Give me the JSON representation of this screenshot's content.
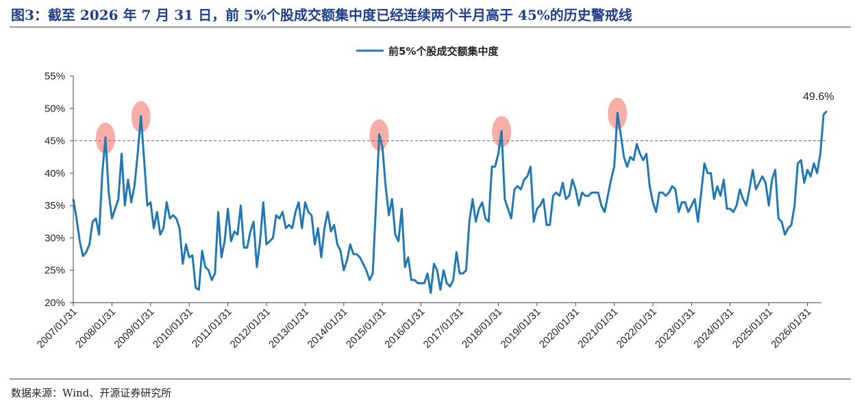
{
  "figure": {
    "title": "图3：截至 2026 年 7 月 31 日，前 5%个股成交额集中度已经连续两个半月高于 45%的历史警戒线",
    "source": "数据来源：Wind、开源证券研究所"
  },
  "colors": {
    "line": "#1f77b4",
    "threshold": "#e8473f",
    "highlight": "#f4a097",
    "title": "#1f3f8c",
    "axis": "#404040"
  },
  "chart_data": {
    "type": "line",
    "title": "",
    "xlabel": "",
    "ylabel": "",
    "legend": {
      "position": "top-center",
      "entries": [
        "前5%个股成交额集中度"
      ]
    },
    "x_start": "2007/01",
    "x_end": "2026/07",
    "x_ticks": [
      "2007/01/31",
      "2008/01/31",
      "2009/01/31",
      "2010/01/31",
      "2011/01/31",
      "2012/01/31",
      "2013/01/31",
      "2014/01/31",
      "2015/01/31",
      "2016/01/31",
      "2017/01/31",
      "2018/01/31",
      "2019/01/31",
      "2020/01/31",
      "2021/01/31",
      "2022/01/31",
      "2023/01/31",
      "2024/01/31",
      "2025/01/31",
      "2026/01/31"
    ],
    "ylim": [
      20,
      55
    ],
    "y_ticks": [
      "20%",
      "25%",
      "30%",
      "35%",
      "40%",
      "45%",
      "50%",
      "55%"
    ],
    "threshold": 45,
    "grid": false,
    "series": [
      {
        "name": "前5%个股成交额集中度",
        "points": [
          [
            "2007/01",
            36.0
          ],
          [
            "2007/02",
            33.0
          ],
          [
            "2007/03",
            29.5
          ],
          [
            "2007/04",
            27.2
          ],
          [
            "2007/05",
            27.8
          ],
          [
            "2007/06",
            29.0
          ],
          [
            "2007/07",
            32.5
          ],
          [
            "2007/08",
            33.0
          ],
          [
            "2007/09",
            30.5
          ],
          [
            "2007/10",
            40.0
          ],
          [
            "2007/11",
            45.5
          ],
          [
            "2007/12",
            37.0
          ],
          [
            "2008/01",
            33.0
          ],
          [
            "2008/02",
            34.5
          ],
          [
            "2008/03",
            36.0
          ],
          [
            "2008/04",
            43.0
          ],
          [
            "2008/05",
            35.0
          ],
          [
            "2008/06",
            39.0
          ],
          [
            "2008/07",
            35.5
          ],
          [
            "2008/08",
            38.0
          ],
          [
            "2008/09",
            43.0
          ],
          [
            "2008/10",
            48.8
          ],
          [
            "2008/11",
            42.0
          ],
          [
            "2008/12",
            35.0
          ],
          [
            "2009/01",
            35.5
          ],
          [
            "2009/02",
            31.5
          ],
          [
            "2009/03",
            34.0
          ],
          [
            "2009/04",
            30.5
          ],
          [
            "2009/05",
            31.5
          ],
          [
            "2009/06",
            35.5
          ],
          [
            "2009/07",
            33.0
          ],
          [
            "2009/08",
            33.5
          ],
          [
            "2009/09",
            33.0
          ],
          [
            "2009/10",
            31.5
          ],
          [
            "2009/11",
            26.0
          ],
          [
            "2009/12",
            29.0
          ],
          [
            "2010/01",
            27.0
          ],
          [
            "2010/02",
            27.3
          ],
          [
            "2010/03",
            22.3
          ],
          [
            "2010/04",
            22.0
          ],
          [
            "2010/05",
            28.0
          ],
          [
            "2010/06",
            25.5
          ],
          [
            "2010/07",
            25.0
          ],
          [
            "2010/08",
            23.5
          ],
          [
            "2010/09",
            24.5
          ],
          [
            "2010/10",
            34.0
          ],
          [
            "2010/11",
            27.0
          ],
          [
            "2010/12",
            29.5
          ],
          [
            "2011/01",
            34.5
          ],
          [
            "2011/02",
            29.5
          ],
          [
            "2011/03",
            31.0
          ],
          [
            "2011/04",
            30.5
          ],
          [
            "2011/05",
            35.0
          ],
          [
            "2011/06",
            28.5
          ],
          [
            "2011/07",
            28.5
          ],
          [
            "2011/08",
            31.0
          ],
          [
            "2011/09",
            32.5
          ],
          [
            "2011/10",
            25.5
          ],
          [
            "2011/11",
            29.5
          ],
          [
            "2011/12",
            35.5
          ],
          [
            "2012/01",
            29.0
          ],
          [
            "2012/02",
            29.5
          ],
          [
            "2012/03",
            30.0
          ],
          [
            "2012/04",
            33.5
          ],
          [
            "2012/05",
            33.0
          ],
          [
            "2012/06",
            34.0
          ],
          [
            "2012/07",
            31.5
          ],
          [
            "2012/08",
            32.0
          ],
          [
            "2012/09",
            31.5
          ],
          [
            "2012/10",
            34.0
          ],
          [
            "2012/11",
            35.5
          ],
          [
            "2012/12",
            31.5
          ],
          [
            "2013/01",
            35.5
          ],
          [
            "2013/02",
            34.0
          ],
          [
            "2013/03",
            33.5
          ],
          [
            "2013/04",
            29.0
          ],
          [
            "2013/05",
            31.5
          ],
          [
            "2013/06",
            27.0
          ],
          [
            "2013/07",
            31.5
          ],
          [
            "2013/08",
            34.0
          ],
          [
            "2013/09",
            31.0
          ],
          [
            "2013/10",
            32.0
          ],
          [
            "2013/11",
            29.0
          ],
          [
            "2013/12",
            28.0
          ],
          [
            "2014/01",
            25.0
          ],
          [
            "2014/02",
            26.5
          ],
          [
            "2014/03",
            29.0
          ],
          [
            "2014/04",
            27.5
          ],
          [
            "2014/05",
            27.5
          ],
          [
            "2014/06",
            27.0
          ],
          [
            "2014/07",
            26.0
          ],
          [
            "2014/08",
            25.0
          ],
          [
            "2014/09",
            23.5
          ],
          [
            "2014/10",
            24.5
          ],
          [
            "2014/11",
            35.0
          ],
          [
            "2014/12",
            46.0
          ],
          [
            "2015/01",
            44.0
          ],
          [
            "2015/02",
            38.0
          ],
          [
            "2015/03",
            33.5
          ],
          [
            "2015/04",
            36.0
          ],
          [
            "2015/05",
            30.5
          ],
          [
            "2015/06",
            29.5
          ],
          [
            "2015/07",
            34.5
          ],
          [
            "2015/08",
            25.5
          ],
          [
            "2015/09",
            27.0
          ],
          [
            "2015/10",
            23.5
          ],
          [
            "2015/11",
            23.5
          ],
          [
            "2015/12",
            23.0
          ],
          [
            "2016/01",
            23.0
          ],
          [
            "2016/02",
            23.0
          ],
          [
            "2016/03",
            24.5
          ],
          [
            "2016/04",
            21.5
          ],
          [
            "2016/05",
            26.0
          ],
          [
            "2016/06",
            25.0
          ],
          [
            "2016/07",
            22.0
          ],
          [
            "2016/08",
            25.0
          ],
          [
            "2016/09",
            23.0
          ],
          [
            "2016/10",
            22.5
          ],
          [
            "2016/11",
            23.5
          ],
          [
            "2016/12",
            27.8
          ],
          [
            "2017/01",
            24.5
          ],
          [
            "2017/02",
            24.5
          ],
          [
            "2017/03",
            25.0
          ],
          [
            "2017/04",
            32.5
          ],
          [
            "2017/05",
            36.0
          ],
          [
            "2017/06",
            32.5
          ],
          [
            "2017/07",
            34.5
          ],
          [
            "2017/08",
            35.5
          ],
          [
            "2017/09",
            33.0
          ],
          [
            "2017/10",
            32.5
          ],
          [
            "2017/11",
            41.0
          ],
          [
            "2017/12",
            41.0
          ],
          [
            "2018/01",
            43.0
          ],
          [
            "2018/02",
            46.5
          ],
          [
            "2018/03",
            36.0
          ],
          [
            "2018/04",
            34.5
          ],
          [
            "2018/05",
            33.0
          ],
          [
            "2018/06",
            37.5
          ],
          [
            "2018/07",
            38.0
          ],
          [
            "2018/08",
            37.5
          ],
          [
            "2018/09",
            39.0
          ],
          [
            "2018/10",
            39.5
          ],
          [
            "2018/11",
            41.0
          ],
          [
            "2018/12",
            32.5
          ],
          [
            "2019/01",
            34.5
          ],
          [
            "2019/02",
            35.0
          ],
          [
            "2019/03",
            36.0
          ],
          [
            "2019/04",
            32.0
          ],
          [
            "2019/05",
            32.0
          ],
          [
            "2019/06",
            36.5
          ],
          [
            "2019/07",
            37.0
          ],
          [
            "2019/08",
            36.5
          ],
          [
            "2019/09",
            38.5
          ],
          [
            "2019/10",
            36.0
          ],
          [
            "2019/11",
            36.5
          ],
          [
            "2019/12",
            39.0
          ],
          [
            "2020/01",
            37.5
          ],
          [
            "2020/02",
            35.0
          ],
          [
            "2020/03",
            37.0
          ],
          [
            "2020/04",
            36.5
          ],
          [
            "2020/05",
            36.5
          ],
          [
            "2020/06",
            37.0
          ],
          [
            "2020/07",
            37.0
          ],
          [
            "2020/08",
            37.0
          ],
          [
            "2020/09",
            35.0
          ],
          [
            "2020/10",
            34.0
          ],
          [
            "2020/11",
            36.5
          ],
          [
            "2020/12",
            39.0
          ],
          [
            "2021/01",
            41.0
          ],
          [
            "2021/02",
            49.3
          ],
          [
            "2021/03",
            46.0
          ],
          [
            "2021/04",
            42.5
          ],
          [
            "2021/05",
            41.0
          ],
          [
            "2021/06",
            42.5
          ],
          [
            "2021/07",
            42.0
          ],
          [
            "2021/08",
            44.5
          ],
          [
            "2021/09",
            43.0
          ],
          [
            "2021/10",
            42.0
          ],
          [
            "2021/11",
            43.0
          ],
          [
            "2021/12",
            38.0
          ],
          [
            "2022/01",
            35.5
          ],
          [
            "2022/02",
            34.0
          ],
          [
            "2022/03",
            37.0
          ],
          [
            "2022/04",
            37.0
          ],
          [
            "2022/05",
            36.5
          ],
          [
            "2022/06",
            37.0
          ],
          [
            "2022/07",
            38.0
          ],
          [
            "2022/08",
            37.5
          ],
          [
            "2022/09",
            34.0
          ],
          [
            "2022/10",
            35.5
          ],
          [
            "2022/11",
            35.5
          ],
          [
            "2022/12",
            34.0
          ],
          [
            "2023/01",
            35.0
          ],
          [
            "2023/02",
            36.0
          ],
          [
            "2023/03",
            32.5
          ],
          [
            "2023/04",
            37.0
          ],
          [
            "2023/05",
            41.5
          ],
          [
            "2023/06",
            40.0
          ],
          [
            "2023/07",
            40.0
          ],
          [
            "2023/08",
            36.0
          ],
          [
            "2023/09",
            38.0
          ],
          [
            "2023/10",
            36.5
          ],
          [
            "2023/11",
            39.0
          ],
          [
            "2023/12",
            34.5
          ],
          [
            "2024/01",
            34.5
          ],
          [
            "2024/02",
            34.0
          ],
          [
            "2024/03",
            35.0
          ],
          [
            "2024/04",
            37.5
          ],
          [
            "2024/05",
            36.0
          ],
          [
            "2024/06",
            35.0
          ],
          [
            "2024/07",
            37.5
          ],
          [
            "2024/08",
            40.5
          ],
          [
            "2024/09",
            37.5
          ],
          [
            "2024/10",
            38.5
          ],
          [
            "2024/11",
            39.5
          ],
          [
            "2024/12",
            38.5
          ],
          [
            "2025/01",
            35.0
          ],
          [
            "2025/02",
            39.0
          ],
          [
            "2025/03",
            40.5
          ],
          [
            "2025/04",
            33.0
          ],
          [
            "2025/05",
            32.5
          ],
          [
            "2025/06",
            30.5
          ],
          [
            "2025/07",
            31.5
          ],
          [
            "2025/08",
            32.0
          ],
          [
            "2025/09",
            35.0
          ],
          [
            "2025/10",
            41.5
          ],
          [
            "2025/11",
            42.0
          ],
          [
            "2025/12",
            38.5
          ],
          [
            "2026/01",
            40.5
          ],
          [
            "2026/02",
            39.5
          ],
          [
            "2026/03",
            41.5
          ],
          [
            "2026/04",
            40.0
          ],
          [
            "2026/05",
            43.0
          ],
          [
            "2026/06",
            49.0
          ],
          [
            "2026/07",
            49.6
          ]
        ]
      }
    ],
    "highlights": [
      "2007/11",
      "2008/10",
      "2014/12",
      "2018/02",
      "2021/02"
    ],
    "annotations": [
      {
        "text": "49.6%",
        "at": "2026/07"
      }
    ]
  }
}
